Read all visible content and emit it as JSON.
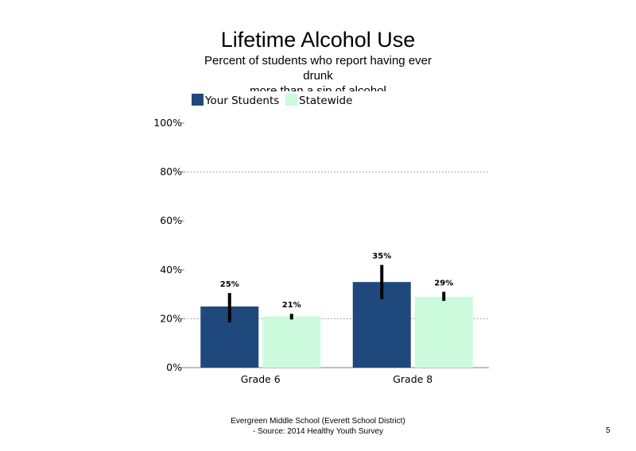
{
  "chart_data": {
    "type": "bar",
    "title": "Lifetime Alcohol Use",
    "subtitle_lines": [
      "Percent of students who report having ever",
      "drunk",
      "more than a sip of alcohol"
    ],
    "categories": [
      "Grade 6",
      "Grade 8"
    ],
    "series": [
      {
        "name": "Your Students",
        "values": [
          25,
          35
        ],
        "labels": [
          "25%",
          "35%"
        ],
        "error_low": [
          18.5,
          28
        ],
        "error_high": [
          30.5,
          42
        ],
        "color": "#1f497d"
      },
      {
        "name": "Statewide",
        "values": [
          21,
          29
        ],
        "labels": [
          "21%",
          "29%"
        ],
        "error_low": [
          19.7,
          27.3
        ],
        "error_high": [
          22,
          31
        ],
        "color": "#ccfadc"
      }
    ],
    "y_ticks": [
      "0%",
      "20%",
      "40%",
      "60%",
      "80%",
      "100%"
    ],
    "ylim": [
      0,
      100
    ],
    "gridlines": [
      20,
      80
    ],
    "legend_position": "top-left",
    "xlabel": "",
    "ylabel": ""
  },
  "footer": {
    "line1": "Evergreen Middle School (Everett School District)",
    "line2": "- Source: 2014 Healthy  Youth Survey"
  },
  "page_number": "5",
  "colors": {
    "error_bar": "#000000",
    "axis": "#808080",
    "grid": "#a6a6a6"
  }
}
